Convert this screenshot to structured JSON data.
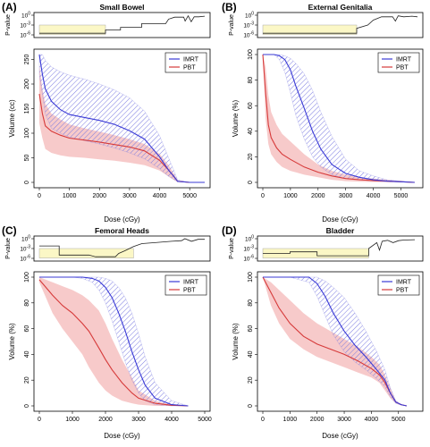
{
  "colors": {
    "imrt": "#3a3ad6",
    "imrt_band": "#7a7ae0",
    "pbt": "#d63a3a",
    "pbt_band": "#f4b8b8",
    "pvalue_fill": "#fbf7c6",
    "axis": "#000000"
  },
  "chart_data": [
    {
      "type": "line",
      "panel_label": "(A)",
      "title": "Small Bowel",
      "xlabel": "Dose (cGy)",
      "ylabel": "Volume (cc)",
      "xlim": [
        0,
        5500
      ],
      "ylim": [
        0,
        260
      ],
      "xticks": [
        "0",
        "1000",
        "2000",
        "3000",
        "4000",
        "5000"
      ],
      "yticks": [
        "0",
        "50",
        "100",
        "150",
        "200",
        "250"
      ],
      "legend": [
        "IMRT",
        "PBT"
      ],
      "legend_position": "top-right",
      "pvalue_ylabel": "P-value",
      "pvalue_ticks": [
        "10^0",
        "10^-3",
        "10^-6"
      ],
      "pvalue_significant_region": [
        0,
        2200
      ],
      "pvalue_line": [
        [
          0,
          -5.5
        ],
        [
          2200,
          -5.5
        ],
        [
          2200,
          -4.5
        ],
        [
          2700,
          -4.5
        ],
        [
          2700,
          -3.7
        ],
        [
          3400,
          -3.7
        ],
        [
          3400,
          -2.6
        ],
        [
          4200,
          -2.6
        ],
        [
          4300,
          -1.2
        ],
        [
          4500,
          -0.6
        ],
        [
          4800,
          -0.6
        ],
        [
          4850,
          -1.8
        ],
        [
          4950,
          -0.2
        ],
        [
          5050,
          -2.0
        ],
        [
          5150,
          -0.5
        ],
        [
          5300,
          -0.5
        ],
        [
          5500,
          -0.3
        ]
      ],
      "series": [
        {
          "name": "IMRT",
          "x": [
            0,
            100,
            200,
            400,
            700,
            1000,
            1500,
            2000,
            2500,
            3000,
            3500,
            4000,
            4300,
            4500,
            4600,
            5000,
            5500
          ],
          "y": [
            260,
            220,
            190,
            165,
            148,
            138,
            132,
            126,
            118,
            105,
            88,
            52,
            25,
            10,
            2,
            0,
            0
          ],
          "lower": [
            220,
            180,
            140,
            110,
            100,
            92,
            85,
            78,
            70,
            60,
            48,
            28,
            12,
            5,
            1,
            0,
            0
          ],
          "upper": [
            260,
            260,
            248,
            235,
            225,
            218,
            210,
            200,
            188,
            172,
            145,
            95,
            50,
            20,
            5,
            0,
            0
          ]
        },
        {
          "name": "PBT",
          "x": [
            0,
            100,
            200,
            400,
            700,
            1000,
            1500,
            2000,
            2500,
            3000,
            3500,
            4000,
            4300,
            4500,
            4600,
            5000,
            5500
          ],
          "y": [
            180,
            140,
            115,
            104,
            96,
            90,
            86,
            82,
            77,
            72,
            64,
            45,
            25,
            10,
            2,
            0,
            0
          ],
          "lower": [
            120,
            90,
            68,
            60,
            55,
            52,
            50,
            47,
            44,
            40,
            35,
            24,
            12,
            4,
            1,
            0,
            0
          ],
          "upper": [
            240,
            190,
            160,
            140,
            128,
            118,
            110,
            103,
            96,
            88,
            78,
            58,
            35,
            15,
            4,
            0,
            0
          ]
        }
      ]
    },
    {
      "type": "line",
      "panel_label": "(B)",
      "title": "External Genitalia",
      "xlabel": "Dose (cGy)",
      "ylabel": "Volume (%)",
      "xlim": [
        0,
        5600
      ],
      "ylim": [
        0,
        100
      ],
      "xticks": [
        "0",
        "1000",
        "2000",
        "3000",
        "4000",
        "5000"
      ],
      "yticks": [
        "0",
        "20",
        "40",
        "60",
        "80",
        "100"
      ],
      "legend": [
        "IMRT",
        "PBT"
      ],
      "legend_position": "top-right",
      "pvalue_ylabel": "P-value",
      "pvalue_ticks": [
        "10^0",
        "10^-3",
        "10^-6"
      ],
      "pvalue_significant_region": [
        0,
        3400
      ],
      "pvalue_line": [
        [
          0,
          -5.5
        ],
        [
          3400,
          -5.5
        ],
        [
          3400,
          -4.0
        ],
        [
          3800,
          -3.0
        ],
        [
          4000,
          -1.5
        ],
        [
          4300,
          -0.5
        ],
        [
          4700,
          -0.5
        ],
        [
          4800,
          -1.8
        ],
        [
          4900,
          -0.2
        ],
        [
          5100,
          -0.5
        ],
        [
          5400,
          -0.3
        ],
        [
          5600,
          -0.5
        ]
      ],
      "series": [
        {
          "name": "IMRT",
          "x": [
            0,
            400,
            600,
            800,
            1000,
            1200,
            1500,
            1800,
            2100,
            2500,
            3000,
            3500,
            4000,
            4500,
            5000,
            5500
          ],
          "y": [
            100,
            100,
            99,
            96,
            88,
            75,
            58,
            40,
            26,
            14,
            7,
            4,
            2,
            1,
            0.5,
            0
          ],
          "lower": [
            100,
            100,
            96,
            86,
            70,
            52,
            34,
            20,
            12,
            6,
            3,
            2,
            1,
            0.5,
            0.2,
            0
          ],
          "upper": [
            100,
            100,
            100,
            99,
            97,
            93,
            85,
            72,
            55,
            36,
            18,
            9,
            5,
            2,
            1,
            0
          ]
        },
        {
          "name": "PBT",
          "x": [
            0,
            100,
            200,
            300,
            500,
            700,
            1000,
            1500,
            2000,
            2500,
            3000,
            3500,
            4000,
            4500,
            5000,
            5500
          ],
          "y": [
            100,
            70,
            45,
            35,
            27,
            22,
            18,
            12,
            8,
            5,
            3,
            2,
            1.5,
            1,
            0.5,
            0
          ],
          "lower": [
            100,
            50,
            30,
            22,
            16,
            12,
            9,
            6,
            4,
            2,
            1,
            0.5,
            0.3,
            0.2,
            0.1,
            0
          ],
          "upper": [
            100,
            90,
            68,
            55,
            45,
            38,
            32,
            22,
            14,
            9,
            6,
            4,
            3,
            2,
            1,
            0
          ]
        }
      ]
    },
    {
      "type": "line",
      "panel_label": "(C)",
      "title": "Femoral Heads",
      "xlabel": "Dose (cGy)",
      "ylabel": "Volume (%)",
      "xlim": [
        0,
        5000
      ],
      "ylim": [
        0,
        100
      ],
      "xticks": [
        "0",
        "1000",
        "2000",
        "3000",
        "4000",
        "5000"
      ],
      "yticks": [
        "0",
        "20",
        "40",
        "60",
        "80",
        "100"
      ],
      "legend": [
        "IMRT",
        "PBT"
      ],
      "legend_position": "top-right",
      "pvalue_ylabel": "P-value",
      "pvalue_ticks": [
        "10^0",
        "10^-3",
        "10^-6"
      ],
      "pvalue_significant_region": [
        0,
        2850
      ],
      "pvalue_line": [
        [
          0,
          -2.2
        ],
        [
          600,
          -2.2
        ],
        [
          600,
          -5.0
        ],
        [
          1500,
          -5.0
        ],
        [
          1700,
          -5.5
        ],
        [
          2300,
          -5.5
        ],
        [
          2400,
          -4.5
        ],
        [
          2600,
          -3.6
        ],
        [
          2850,
          -2.4
        ],
        [
          3100,
          -1.5
        ],
        [
          3500,
          -1.2
        ],
        [
          4000,
          -0.8
        ],
        [
          4300,
          -0.6
        ],
        [
          4400,
          0.0
        ],
        [
          4600,
          -0.8
        ],
        [
          4800,
          -0.2
        ],
        [
          5000,
          -0.2
        ]
      ],
      "series": [
        {
          "name": "IMRT",
          "x": [
            0,
            500,
            1000,
            1300,
            1600,
            1800,
            2000,
            2200,
            2400,
            2600,
            2800,
            3000,
            3200,
            3500,
            4000,
            4500
          ],
          "y": [
            100,
            100,
            100,
            100,
            99,
            97,
            92,
            84,
            72,
            58,
            42,
            28,
            16,
            6,
            1,
            0
          ],
          "lower": [
            100,
            100,
            100,
            99,
            96,
            90,
            80,
            66,
            50,
            34,
            20,
            10,
            4,
            1,
            0,
            0
          ],
          "upper": [
            100,
            100,
            100,
            100,
            100,
            100,
            99,
            97,
            92,
            84,
            72,
            56,
            38,
            18,
            4,
            0
          ]
        },
        {
          "name": "PBT",
          "x": [
            0,
            200,
            400,
            700,
            1000,
            1300,
            1500,
            1800,
            2000,
            2200,
            2500,
            2800,
            3000,
            3500,
            4000,
            4500
          ],
          "y": [
            98,
            92,
            86,
            78,
            72,
            64,
            58,
            45,
            36,
            28,
            18,
            10,
            6,
            2,
            0.5,
            0
          ],
          "lower": [
            96,
            84,
            72,
            60,
            50,
            40,
            30,
            18,
            12,
            8,
            4,
            2,
            1,
            0,
            0,
            0
          ],
          "upper": [
            100,
            98,
            96,
            93,
            90,
            86,
            82,
            74,
            64,
            52,
            36,
            22,
            12,
            4,
            1,
            0
          ]
        }
      ]
    },
    {
      "type": "line",
      "panel_label": "(D)",
      "title": "Bladder",
      "xlabel": "Dose (cGy)",
      "ylabel": "Volume (%)",
      "xlim": [
        0,
        5700
      ],
      "ylim": [
        0,
        100
      ],
      "xticks": [
        "0",
        "1000",
        "2000",
        "3000",
        "4000",
        "5000"
      ],
      "yticks": [
        "0",
        "20",
        "40",
        "60",
        "80",
        "100"
      ],
      "legend": [
        "IMRT",
        "PBT"
      ],
      "legend_position": "top-right",
      "pvalue_ylabel": "P-value",
      "pvalue_ticks": [
        "10^0",
        "10^-3",
        "10^-6"
      ],
      "pvalue_significant_region": [
        0,
        3900
      ],
      "pvalue_line": [
        [
          0,
          -4.5
        ],
        [
          1000,
          -4.5
        ],
        [
          1000,
          -4.0
        ],
        [
          2000,
          -4.0
        ],
        [
          2000,
          -5.2
        ],
        [
          3900,
          -5.2
        ],
        [
          3900,
          -3.0
        ],
        [
          4200,
          -1.2
        ],
        [
          4300,
          -3.5
        ],
        [
          4400,
          -0.8
        ],
        [
          4600,
          -0.5
        ],
        [
          4800,
          -1.2
        ],
        [
          5000,
          -0.6
        ],
        [
          5200,
          -0.4
        ],
        [
          5600,
          -0.3
        ]
      ],
      "series": [
        {
          "name": "IMRT",
          "x": [
            0,
            1000,
            1700,
            2000,
            2300,
            2600,
            3000,
            3400,
            3800,
            4200,
            4500,
            4700,
            4900,
            5100,
            5300
          ],
          "y": [
            100,
            100,
            100,
            95,
            85,
            72,
            58,
            47,
            38,
            28,
            20,
            10,
            3,
            1,
            0
          ],
          "lower": [
            100,
            100,
            96,
            85,
            70,
            55,
            42,
            34,
            28,
            21,
            15,
            7,
            2,
            0.5,
            0
          ],
          "upper": [
            100,
            100,
            100,
            100,
            97,
            92,
            84,
            72,
            58,
            42,
            28,
            14,
            4,
            1,
            0
          ]
        },
        {
          "name": "PBT",
          "x": [
            0,
            300,
            600,
            1000,
            1500,
            2000,
            2500,
            3000,
            3500,
            4000,
            4300,
            4500,
            4700,
            4900,
            5100,
            5300
          ],
          "y": [
            100,
            88,
            76,
            64,
            54,
            48,
            44,
            40,
            35,
            29,
            24,
            18,
            10,
            3,
            1,
            0
          ],
          "lower": [
            100,
            78,
            64,
            52,
            44,
            38,
            34,
            30,
            26,
            22,
            18,
            12,
            6,
            2,
            0.5,
            0
          ],
          "upper": [
            100,
            96,
            90,
            82,
            72,
            64,
            58,
            52,
            46,
            38,
            32,
            24,
            14,
            4,
            1,
            0
          ]
        }
      ]
    }
  ]
}
